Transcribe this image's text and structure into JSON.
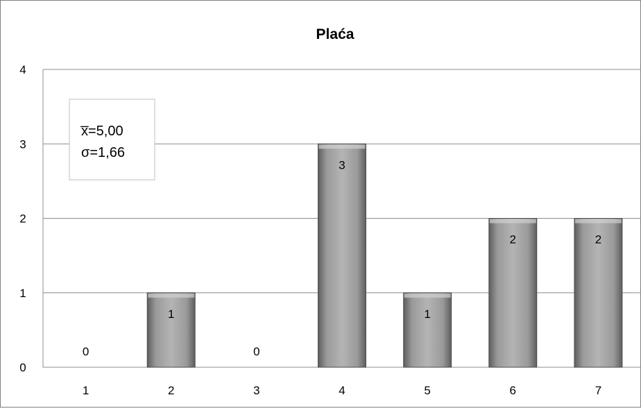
{
  "chart_data": {
    "type": "bar",
    "title": "Plaća",
    "categories": [
      "1",
      "2",
      "3",
      "4",
      "5",
      "6",
      "7"
    ],
    "values": [
      0,
      1,
      0,
      3,
      1,
      2,
      2
    ],
    "data_labels": [
      "0",
      "1",
      "0",
      "3",
      "1",
      "2",
      "2"
    ],
    "ylim": [
      0,
      4
    ],
    "yticks": [
      "0",
      "1",
      "2",
      "3",
      "4"
    ],
    "grid": true,
    "legend": "none",
    "bar_color": "#a6a6a6",
    "annotation": {
      "mean": "x̅=5,00",
      "sd": "σ=1,66"
    }
  }
}
